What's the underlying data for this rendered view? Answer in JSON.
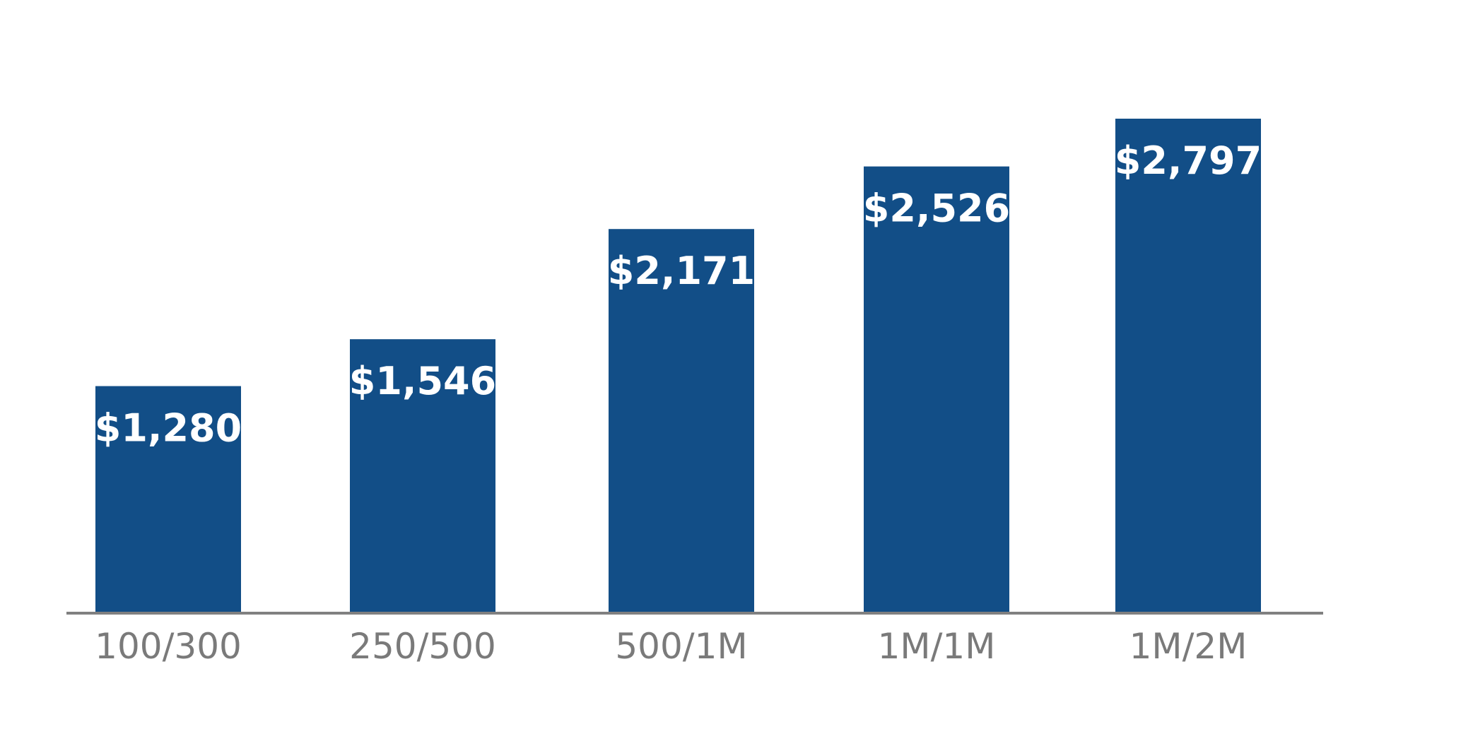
{
  "chart_data": {
    "type": "bar",
    "categories": [
      "100/300",
      "250/500",
      "500/1M",
      "1M/1M",
      "1M/2M"
    ],
    "values": [
      1280,
      1546,
      2171,
      2526,
      2797
    ],
    "value_labels": [
      "$1,280",
      "$1,546",
      "$2,171",
      "$2,526",
      "$2,797"
    ],
    "title": "",
    "xlabel": "",
    "ylabel": "",
    "ylim": [
      0,
      3500
    ],
    "grid": false,
    "legend": "none",
    "colors": {
      "bar": "#124e87",
      "axis": "#808080",
      "category_text": "#7a7a7a",
      "value_text": "#ffffff"
    }
  }
}
